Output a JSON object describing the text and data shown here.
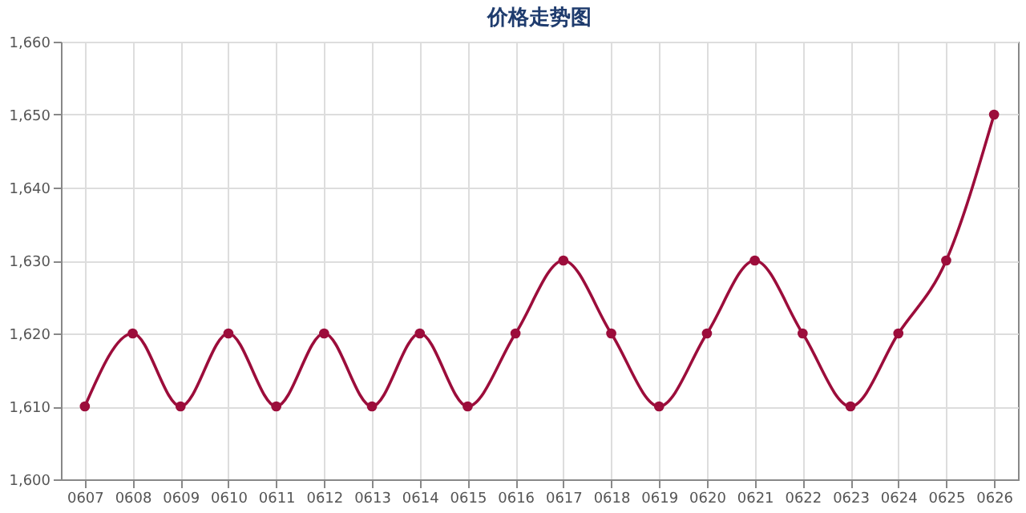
{
  "chart_data": {
    "type": "line",
    "title": "价格走势图",
    "categories": [
      "0607",
      "0608",
      "0609",
      "0610",
      "0611",
      "0612",
      "0613",
      "0614",
      "0615",
      "0616",
      "0617",
      "0618",
      "0619",
      "0620",
      "0621",
      "0622",
      "0623",
      "0624",
      "0625",
      "0626"
    ],
    "series": [
      {
        "color": "#9c0d3b",
        "values": [
          1610,
          1620,
          1610,
          1620,
          1610,
          1620,
          1610,
          1620,
          1610,
          1620,
          1630,
          1620,
          1610,
          1620,
          1630,
          1620,
          1610,
          1620,
          1630,
          1650
        ]
      }
    ],
    "ylim": [
      1600,
      1660
    ],
    "yticks": [
      {
        "value": 1600,
        "label": "1,600"
      },
      {
        "value": 1610,
        "label": "1,610"
      },
      {
        "value": 1620,
        "label": "1,620"
      },
      {
        "value": 1630,
        "label": "1,630"
      },
      {
        "value": 1640,
        "label": "1,640"
      },
      {
        "value": 1650,
        "label": "1,650"
      },
      {
        "value": 1660,
        "label": "1,660"
      }
    ],
    "grid": true,
    "marker": "circle",
    "line_style": "solid"
  }
}
